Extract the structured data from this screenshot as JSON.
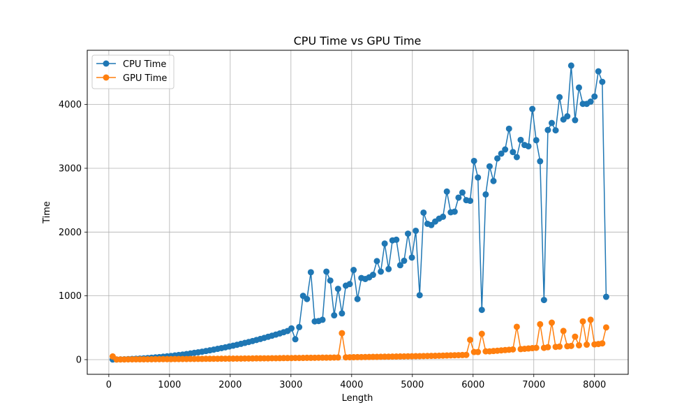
{
  "chart_data": {
    "type": "line",
    "title": "CPU Time vs GPU Time",
    "xlabel": "Length",
    "ylabel": "Time",
    "xlim": [
      -355,
      8555
    ],
    "ylim": [
      -230,
      4850
    ],
    "x_ticks": [
      0,
      1000,
      2000,
      3000,
      4000,
      5000,
      6000,
      7000,
      8000
    ],
    "y_ticks": [
      0,
      1000,
      2000,
      3000,
      4000
    ],
    "grid": true,
    "legend_position": "top-left",
    "x": [
      64,
      128,
      192,
      256,
      320,
      384,
      448,
      512,
      576,
      640,
      704,
      768,
      832,
      896,
      960,
      1024,
      1088,
      1152,
      1216,
      1280,
      1344,
      1408,
      1472,
      1536,
      1600,
      1664,
      1728,
      1792,
      1856,
      1920,
      1984,
      2048,
      2112,
      2176,
      2240,
      2304,
      2368,
      2432,
      2496,
      2560,
      2624,
      2688,
      2752,
      2816,
      2880,
      2944,
      3008,
      3072,
      3136,
      3200,
      3264,
      3328,
      3392,
      3456,
      3520,
      3584,
      3648,
      3712,
      3776,
      3840,
      3904,
      3968,
      4032,
      4096,
      4160,
      4224,
      4288,
      4352,
      4416,
      4480,
      4544,
      4608,
      4672,
      4736,
      4800,
      4864,
      4928,
      4992,
      5056,
      5120,
      5184,
      5248,
      5312,
      5376,
      5440,
      5504,
      5568,
      5632,
      5696,
      5760,
      5824,
      5888,
      5952,
      6016,
      6080,
      6144,
      6208,
      6272,
      6336,
      6400,
      6464,
      6528,
      6592,
      6656,
      6720,
      6784,
      6848,
      6912,
      6976,
      7040,
      7104,
      7168,
      7232,
      7296,
      7360,
      7424,
      7488,
      7552,
      7616,
      7680,
      7744,
      7808,
      7872,
      7936,
      8000,
      8064,
      8128,
      8192
    ],
    "series": [
      {
        "name": "CPU Time",
        "color": "#1f77b4",
        "values": [
          2,
          3,
          4,
          6,
          8,
          11,
          14,
          17,
          21,
          25,
          30,
          35,
          40,
          46,
          52,
          58,
          65,
          72,
          80,
          88,
          97,
          106,
          115,
          125,
          135,
          146,
          157,
          169,
          181,
          193,
          206,
          219,
          233,
          247,
          262,
          277,
          292,
          308,
          324,
          341,
          358,
          375,
          393,
          411,
          430,
          449,
          490,
          320,
          510,
          1000,
          950,
          1370,
          600,
          605,
          625,
          1380,
          1240,
          695,
          1110,
          725,
          1160,
          1185,
          1405,
          950,
          1280,
          1265,
          1290,
          1330,
          1545,
          1380,
          1820,
          1420,
          1870,
          1880,
          1480,
          1550,
          1975,
          1600,
          2020,
          1010,
          2305,
          2130,
          2110,
          2165,
          2210,
          2240,
          2635,
          2310,
          2320,
          2540,
          2620,
          2500,
          2490,
          3115,
          2855,
          780,
          2590,
          3030,
          2800,
          3155,
          3230,
          3295,
          3620,
          3255,
          3175,
          3445,
          3365,
          3345,
          3930,
          3440,
          3110,
          935,
          3600,
          3710,
          3595,
          4115,
          3765,
          3815,
          4610,
          3755,
          4265,
          4010,
          4010,
          4045,
          4125,
          4520,
          4355,
          985
        ]
      },
      {
        "name": "GPU Time",
        "color": "#ff7f0e",
        "values": [
          50,
          2,
          3,
          3,
          4,
          4,
          5,
          5,
          5,
          6,
          6,
          7,
          7,
          8,
          8,
          8,
          9,
          9,
          10,
          10,
          11,
          11,
          12,
          12,
          13,
          13,
          14,
          14,
          15,
          15,
          16,
          16,
          17,
          17,
          18,
          18,
          19,
          20,
          20,
          21,
          21,
          22,
          22,
          23,
          24,
          24,
          25,
          26,
          26,
          27,
          28,
          28,
          29,
          30,
          31,
          31,
          32,
          33,
          34,
          415,
          36,
          37,
          38,
          39,
          40,
          41,
          42,
          43,
          44,
          45,
          46,
          47,
          48,
          49,
          50,
          51,
          52,
          53,
          54,
          55,
          56,
          58,
          59,
          60,
          62,
          63,
          65,
          67,
          69,
          70,
          72,
          74,
          310,
          120,
          120,
          405,
          130,
          130,
          135,
          140,
          145,
          150,
          155,
          160,
          515,
          165,
          170,
          175,
          180,
          185,
          555,
          185,
          195,
          580,
          200,
          205,
          450,
          210,
          215,
          360,
          225,
          600,
          235,
          625,
          240,
          245,
          255,
          505
        ]
      }
    ]
  }
}
